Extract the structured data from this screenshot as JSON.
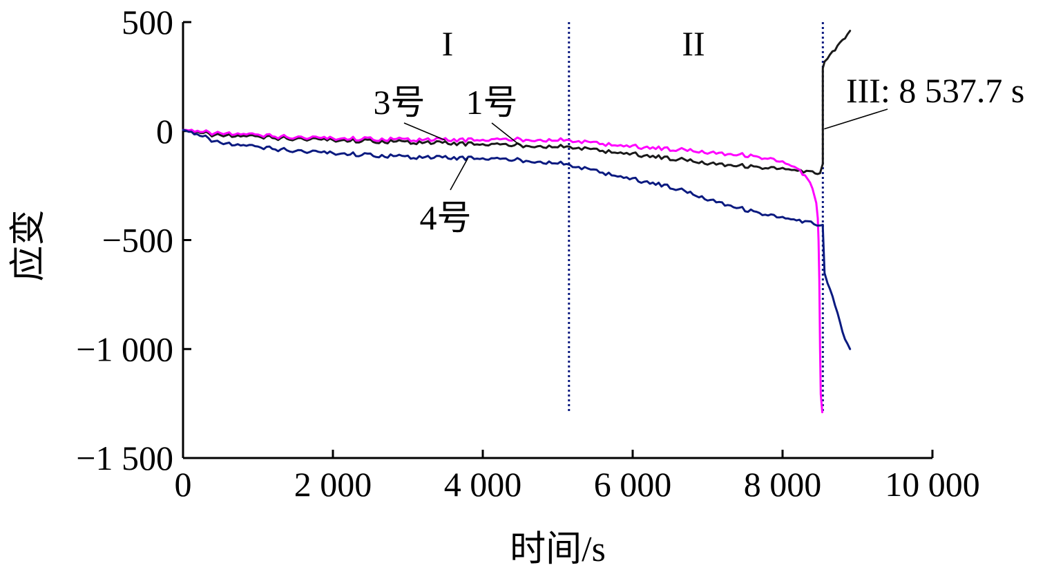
{
  "chart_data": {
    "type": "line",
    "xlabel": "时间/s",
    "ylabel": "应变",
    "xlim": [
      0,
      10000
    ],
    "ylim": [
      -1500,
      500
    ],
    "x_ticks": [
      {
        "value": 0,
        "label": "0"
      },
      {
        "value": 2000,
        "label": "2 000"
      },
      {
        "value": 4000,
        "label": "4 000"
      },
      {
        "value": 6000,
        "label": "6 000"
      },
      {
        "value": 8000,
        "label": "8 000"
      },
      {
        "value": 10000,
        "label": "10 000"
      }
    ],
    "y_ticks": [
      {
        "value": 500,
        "label": "500"
      },
      {
        "value": 0,
        "label": "0"
      },
      {
        "value": -500,
        "label": "−500"
      },
      {
        "value": -1000,
        "label": "−1 000"
      },
      {
        "value": -1500,
        "label": "−1 500"
      }
    ],
    "grid": false,
    "colors": {
      "series_1": "#1a1a1a",
      "series_3": "#ff00ff",
      "series_4": "#0a1a80",
      "phase_lines": "#0a1a80"
    },
    "series": [
      {
        "id": "series_1",
        "name": "1号",
        "x": [
          0,
          500,
          1000,
          1500,
          2000,
          2500,
          3000,
          3500,
          4000,
          4500,
          5000,
          5200,
          5600,
          6000,
          6500,
          7000,
          7500,
          8000,
          8200,
          8400,
          8500,
          8537,
          8537.7,
          8560,
          8600,
          8700,
          8800,
          8900
        ],
        "y": [
          0,
          -20,
          -28,
          -35,
          -40,
          -46,
          -50,
          -55,
          -60,
          -65,
          -70,
          -75,
          -90,
          -105,
          -125,
          -145,
          -160,
          -175,
          -185,
          -192,
          -185,
          -150,
          280,
          320,
          340,
          370,
          420,
          460
        ]
      },
      {
        "id": "series_3",
        "name": "3号",
        "x": [
          0,
          500,
          1000,
          1500,
          2000,
          2500,
          3000,
          3500,
          4000,
          4500,
          5000,
          5200,
          5600,
          6000,
          6500,
          7000,
          7500,
          7800,
          8000,
          8200,
          8300,
          8400,
          8450,
          8470,
          8480,
          8490,
          8500,
          8510,
          8530
        ],
        "y": [
          0,
          -10,
          -20,
          -28,
          -32,
          -36,
          -38,
          -40,
          -40,
          -38,
          -40,
          -45,
          -58,
          -70,
          -82,
          -95,
          -110,
          -125,
          -145,
          -175,
          -210,
          -260,
          -320,
          -400,
          -500,
          -680,
          -1000,
          -1200,
          -1290
        ]
      },
      {
        "id": "series_4",
        "name": "4号",
        "x": [
          0,
          300,
          500,
          1000,
          1500,
          2000,
          2500,
          3000,
          3500,
          4000,
          4500,
          5000,
          5200,
          5600,
          6000,
          6500,
          7000,
          7500,
          8000,
          8300,
          8500,
          8537,
          8537.7,
          8560,
          8600,
          8700,
          8800,
          8900
        ],
        "y": [
          0,
          -30,
          -55,
          -75,
          -90,
          -100,
          -110,
          -118,
          -122,
          -125,
          -133,
          -145,
          -160,
          -190,
          -220,
          -255,
          -310,
          -360,
          -400,
          -420,
          -425,
          -430,
          -450,
          -650,
          -690,
          -800,
          -920,
          -1000
        ]
      }
    ],
    "phase_lines": [
      5150,
      8537.7
    ],
    "phase_labels": [
      {
        "text": "I",
        "x": 3550
      },
      {
        "text": "II",
        "x": 6850
      }
    ],
    "annotations": [
      {
        "text": "3号",
        "series": "series_3",
        "at_x": 3500
      },
      {
        "text": "1号",
        "series": "series_1",
        "at_x": 4500
      },
      {
        "text": "4号",
        "series": "series_4",
        "at_x": 3800
      },
      {
        "text": "III: 8 537.7 s",
        "target_x": 8537.7,
        "target_y": 0
      }
    ]
  }
}
